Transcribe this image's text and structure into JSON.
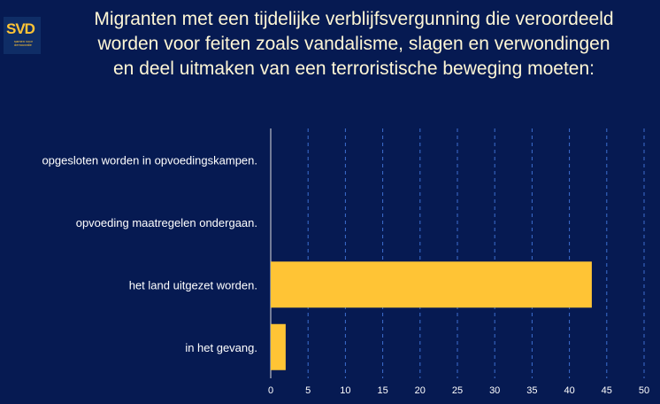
{
  "logo": {
    "text": "SVD",
    "subtitle": "samen voor democratie"
  },
  "chart_data": {
    "type": "bar",
    "orientation": "horizontal",
    "title": "Migranten met een tijdelijke verblijfsvergunning die veroordeeld worden voor feiten zoals vandalisme, slagen en verwondingen en deel uitmaken van een terroristische beweging moeten:",
    "categories": [
      "opgesloten worden in opvoedingskampen.",
      "opvoeding maatregelen ondergaan.",
      "het land uitgezet worden.",
      "in het gevang."
    ],
    "values": [
      0,
      0,
      43,
      2
    ],
    "xlim": [
      0,
      50
    ],
    "xticks": [
      0,
      5,
      10,
      15,
      20,
      25,
      30,
      35,
      40,
      45,
      50
    ],
    "grid": true,
    "bar_color": "#ffc435",
    "background": "#061a52"
  }
}
